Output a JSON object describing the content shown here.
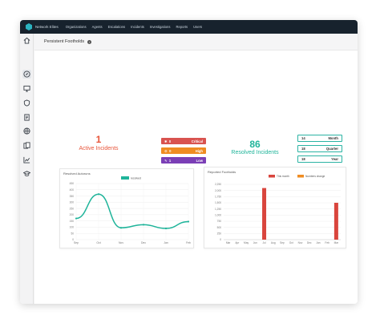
{
  "topbar": {
    "brand": "Network Elites",
    "nav": [
      "Organizations",
      "Agents",
      "Escalations",
      "Incidents",
      "Investigations",
      "Reports",
      "Users"
    ]
  },
  "sidebar": {
    "icons": [
      "home-icon",
      "compass-icon",
      "monitor-icon",
      "shield-icon",
      "document-icon",
      "globe-icon",
      "files-icon",
      "line-chart-icon",
      "graduation-cap-icon"
    ],
    "active_index": 1
  },
  "page": {
    "title": "Persistent Footholds"
  },
  "active": {
    "count": "1",
    "label": "Active Incidents",
    "color": "#e8553a"
  },
  "severity": [
    {
      "count": "0",
      "label": "Critical",
      "color": "#d9534f",
      "icon": "bug-icon"
    },
    {
      "count": "0",
      "label": "High",
      "color": "#ef8c22",
      "icon": "gear-icon"
    },
    {
      "count": "1",
      "label": "Low",
      "color": "#7b3fb6",
      "icon": "wrench-icon"
    }
  ],
  "resolved": {
    "count": "86",
    "label": "Resolved Incidents",
    "color": "#1fb49a"
  },
  "periods": [
    {
      "value": "14",
      "label": "Month"
    },
    {
      "value": "18",
      "label": "Quarter"
    },
    {
      "value": "18",
      "label": "Year"
    }
  ],
  "charts": {
    "left_title": "Resolved Autoruns",
    "right_title": "Reported Footholds"
  },
  "chart_data": [
    {
      "type": "line",
      "title": "Resolved Autoruns",
      "series": [
        {
          "name": "resolved",
          "color": "#1fb49a"
        }
      ],
      "x": [
        "Sep",
        "Oct",
        "Nov",
        "Dec",
        "Jan",
        "Feb"
      ],
      "y_ticks": [
        "0",
        "50",
        "100",
        "150",
        "200",
        "250",
        "300",
        "350",
        "400",
        "450"
      ],
      "ylim": [
        0,
        450
      ],
      "points": [
        {
          "x": "Sep",
          "y": 170
        },
        {
          "x": "Oct",
          "y": 365
        },
        {
          "x": "Nov",
          "y": 95
        },
        {
          "x": "Dec",
          "y": 120
        },
        {
          "x": "Jan",
          "y": 90
        },
        {
          "x": "Feb",
          "y": 145
        }
      ]
    },
    {
      "type": "bar",
      "title": "Reported Footholds",
      "series": [
        {
          "name": "This month",
          "color": "#d9453d"
        },
        {
          "name": "Numbers change",
          "color": "#ef8c22"
        }
      ],
      "categories": [
        "Mar",
        "Apr",
        "May",
        "Jun",
        "Jul",
        "Aug",
        "Sep",
        "Oct",
        "Nov",
        "Dec",
        "Jan",
        "Feb",
        "Mar"
      ],
      "values": [
        0,
        0,
        0,
        0,
        2100,
        0,
        0,
        0,
        0,
        0,
        0,
        0,
        1500
      ],
      "y_ticks": [
        "0",
        "250",
        "500",
        "750",
        "1,000",
        "1,250",
        "1,500",
        "1,750",
        "2,000",
        "2,250"
      ],
      "ylim": [
        0,
        2250
      ]
    }
  ]
}
